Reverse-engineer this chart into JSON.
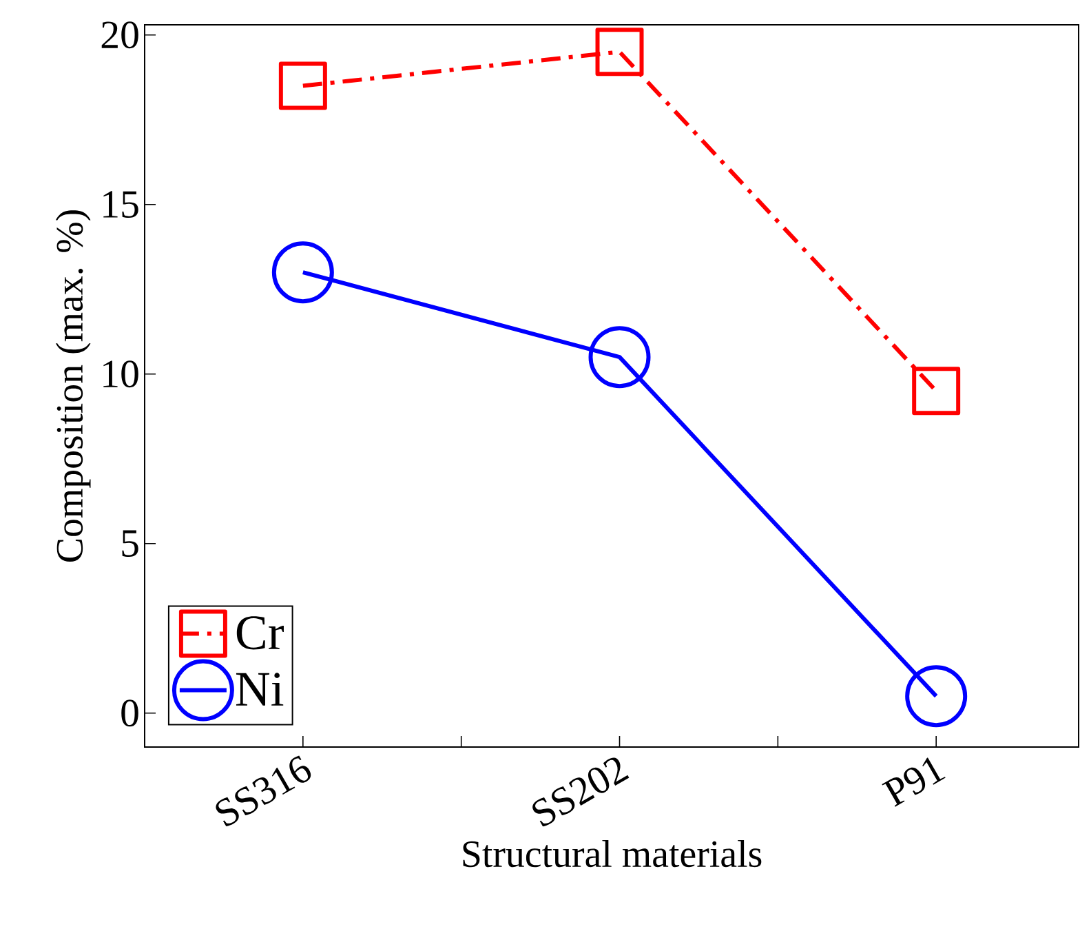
{
  "chart_data": {
    "type": "line",
    "xlabel": "Structural materials",
    "ylabel": "Composition (max. %)",
    "categories": [
      "SS316",
      "SS202",
      "P91"
    ],
    "series": [
      {
        "name": "Cr",
        "color": "#ff0000",
        "values": [
          18.5,
          19.5,
          9.5
        ],
        "marker": "square",
        "line_style": "dashdot"
      },
      {
        "name": "Ni",
        "color": "#0000ff",
        "values": [
          13,
          10.5,
          0.5
        ],
        "marker": "circle",
        "line_style": "solid"
      }
    ],
    "ylim": [
      -1,
      20.3
    ],
    "yticks": [
      0,
      5,
      10,
      15,
      20
    ],
    "legend": "bottom left"
  }
}
